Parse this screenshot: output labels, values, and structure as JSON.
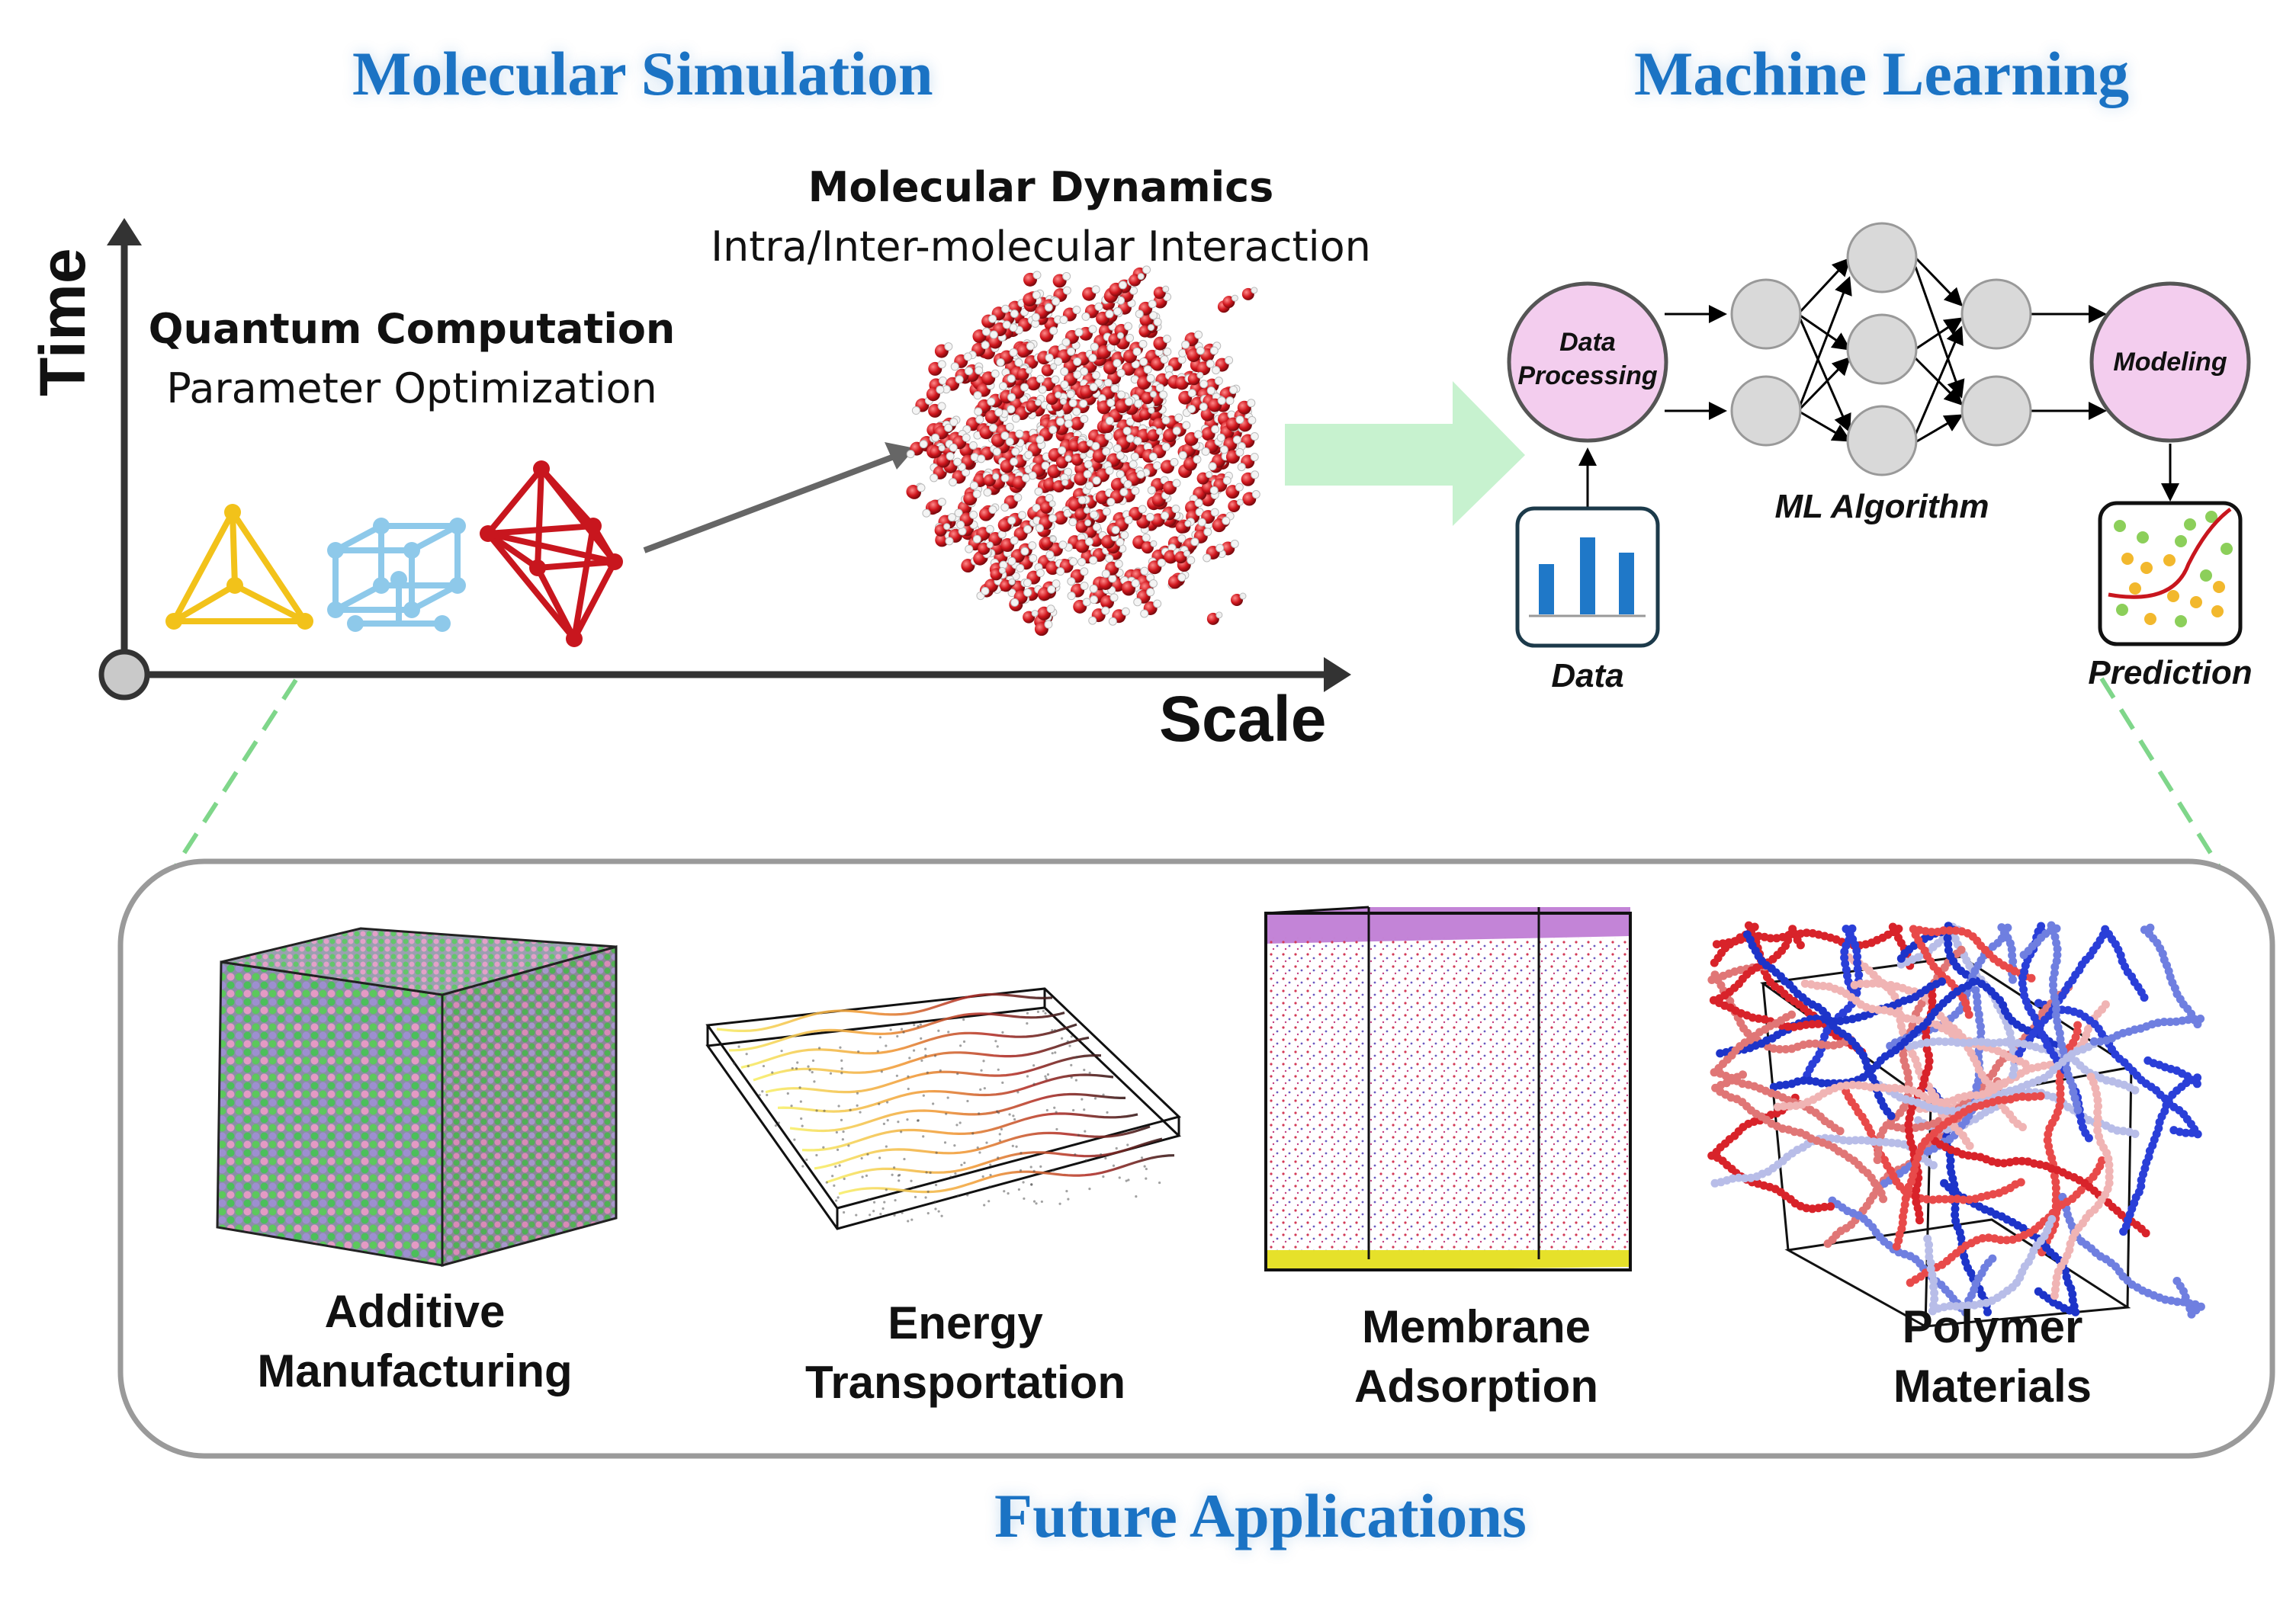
{
  "sections": {
    "molecular_simulation": "Molecular Simulation",
    "machine_learning": "Machine Learning",
    "future_applications": "Future Applications"
  },
  "axes": {
    "y_label": "Time",
    "x_label": "Scale"
  },
  "quantum": {
    "title": "Quantum Computation",
    "subtitle": "Parameter Optimization"
  },
  "md": {
    "title": "Molecular Dynamics",
    "subtitle": "Intra/Inter-molecular Interaction"
  },
  "ml": {
    "data_processing_line1": "Data",
    "data_processing_line2": "Processing",
    "modeling": "Modeling",
    "algorithm": "ML Algorithm",
    "data": "Data",
    "prediction": "Prediction"
  },
  "applications": [
    {
      "line1": "Additive",
      "line2": "Manufacturing"
    },
    {
      "line1": "Energy",
      "line2": "Transportation"
    },
    {
      "line1": "Membrane",
      "line2": "Adsorption"
    },
    {
      "line1": "Polymer",
      "line2": "Materials"
    }
  ],
  "colors": {
    "title_blue": "#1b73c4",
    "arrow_green": "#c7f2cf",
    "node_pink": "#f3cdee",
    "node_gray": "#d9d9d9",
    "chart_blue": "#1f78c8",
    "dash_green": "#7fd68a",
    "yellow": "#f2c21a",
    "light_blue": "#8ec9ea",
    "crystal_red": "#c8161e"
  },
  "icons": [
    "tetrahedron-icon",
    "cubic-lattice-icon",
    "octahedron-icon",
    "water-cluster",
    "bar-chart-icon",
    "scatter-prediction-icon"
  ]
}
